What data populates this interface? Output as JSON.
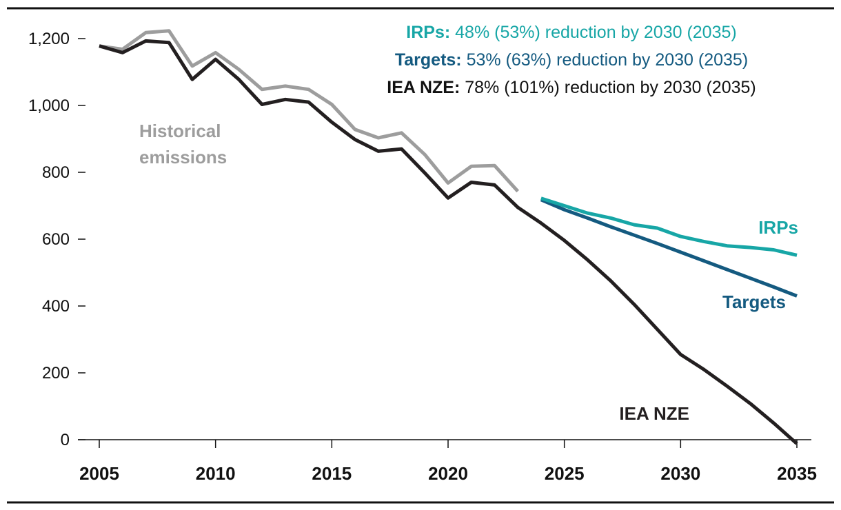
{
  "chart_data": {
    "type": "line",
    "title": "",
    "xlabel": "",
    "ylabel": "",
    "xlim": [
      2005,
      2035
    ],
    "ylim": [
      0,
      1200
    ],
    "grid": false,
    "x_ticks": [
      "2005",
      "2010",
      "2015",
      "2020",
      "2025",
      "2030",
      "2035"
    ],
    "y_ticks": [
      "0",
      "200",
      "400",
      "600",
      "800",
      "1,000",
      "1,200"
    ],
    "series": [
      {
        "name": "Historical emissions",
        "label": [
          "Historical",
          "emissions"
        ],
        "color": "#9d9d9d",
        "x": [
          2005,
          2006,
          2007,
          2008,
          2009,
          2010,
          2011,
          2012,
          2013,
          2014,
          2015,
          2016,
          2017,
          2018,
          2019,
          2020,
          2021,
          2022,
          2023
        ],
        "values": [
          1178,
          1168,
          1218,
          1223,
          1118,
          1158,
          1108,
          1048,
          1058,
          1048,
          1003,
          928,
          903,
          918,
          853,
          768,
          818,
          820,
          743
        ]
      },
      {
        "name": "IEA NZE",
        "label": [
          "IEA NZE"
        ],
        "color": "#231f20",
        "x": [
          2005,
          2006,
          2007,
          2008,
          2009,
          2010,
          2011,
          2012,
          2013,
          2014,
          2015,
          2016,
          2017,
          2018,
          2019,
          2020,
          2021,
          2022,
          2023,
          2024,
          2025,
          2026,
          2027,
          2028,
          2029,
          2030,
          2031,
          2032,
          2033,
          2034,
          2035
        ],
        "values": [
          1178,
          1158,
          1193,
          1188,
          1078,
          1138,
          1078,
          1003,
          1018,
          1010,
          950,
          898,
          863,
          870,
          798,
          723,
          770,
          762,
          695,
          648,
          596,
          538,
          475,
          405,
          330,
          255,
          210,
          160,
          108,
          50,
          -12
        ]
      },
      {
        "name": "Targets",
        "label": [
          "Targets"
        ],
        "color": "#145a80",
        "x": [
          2024,
          2025,
          2026,
          2027,
          2028,
          2029,
          2030,
          2031,
          2032,
          2033,
          2034,
          2035
        ],
        "values": [
          718,
          688,
          663,
          637,
          612,
          587,
          561,
          535,
          509,
          483,
          457,
          430
        ]
      },
      {
        "name": "IRPs",
        "label": [
          "IRPs"
        ],
        "color": "#17a6a6",
        "x": [
          2024,
          2025,
          2026,
          2027,
          2028,
          2029,
          2030,
          2031,
          2032,
          2033,
          2034,
          2035
        ],
        "values": [
          722,
          700,
          678,
          663,
          643,
          633,
          608,
          593,
          580,
          575,
          568,
          552
        ]
      }
    ],
    "annotations": [
      {
        "name": "IRPs",
        "color": "#17a6a6",
        "bold": "IRPs:",
        "text": " 48% (53%) reduction by 2030 (2035)"
      },
      {
        "name": "Targets",
        "color": "#145a80",
        "bold": "Targets:",
        "text": " 53% (63%) reduction by 2030 (2035)"
      },
      {
        "name": "IEA NZE",
        "color": "#111111",
        "bold": "IEA NZE:",
        "text": " 78% (101%) reduction by 2030 (2035)"
      }
    ]
  }
}
